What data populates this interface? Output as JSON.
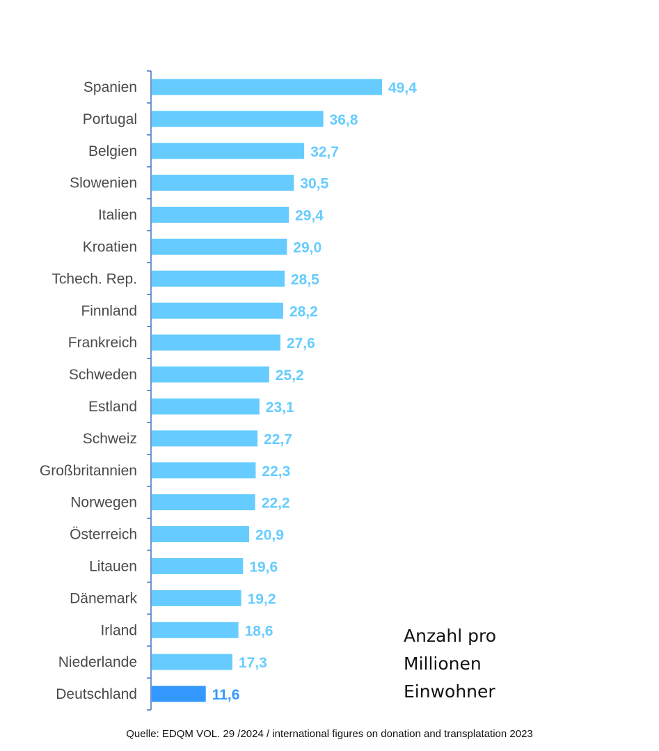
{
  "chart_data": {
    "type": "bar",
    "orientation": "horizontal",
    "categories": [
      "Spanien",
      "Portugal",
      "Belgien",
      "Slowenien",
      "Italien",
      "Kroatien",
      "Tchech. Rep.",
      "Finnland",
      "Frankreich",
      "Schweden",
      "Estland",
      "Schweiz",
      "Großbritannien",
      "Norwegen",
      "Österreich",
      "Litauen",
      "Dänemark",
      "Irland",
      "Niederlande",
      "Deutschland"
    ],
    "values": [
      49.4,
      36.8,
      32.7,
      30.5,
      29.4,
      29.0,
      28.5,
      28.2,
      27.6,
      25.2,
      23.1,
      22.7,
      22.3,
      22.2,
      20.9,
      19.6,
      19.2,
      18.6,
      17.3,
      11.6
    ],
    "value_labels": [
      "49,4",
      "36,8",
      "32,7",
      "30,5",
      "29,4",
      "29,0",
      "28,5",
      "28,2",
      "27,6",
      "25,2",
      "23,1",
      "22,7",
      "22,3",
      "22,2",
      "20,9",
      "19,6",
      "19,2",
      "18,6",
      "17,3",
      "11,6"
    ],
    "highlight_category": "Deutschland",
    "xlim": [
      0,
      55
    ],
    "grid": false,
    "legend": "none",
    "colors": {
      "bar": "#66CCFF",
      "highlight_bar": "#3399FF",
      "value_label": "#66CCFF",
      "highlight_value_label": "#3399FF",
      "axis": "#4472C4"
    }
  },
  "note_lines": [
    "Anzahl pro",
    "Millionen",
    "Einwohner"
  ],
  "source": "Quelle: EDQM VOL. 29 /2024 / international figures on donation and transplatation 2023"
}
